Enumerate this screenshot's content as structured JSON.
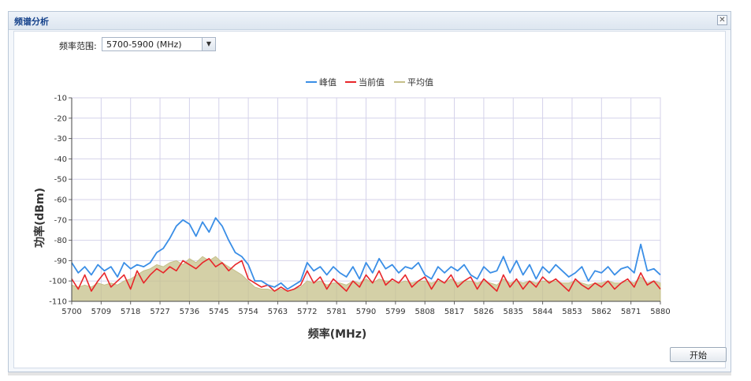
{
  "window": {
    "title": "频谱分析"
  },
  "controls": {
    "range_label": "频率范围:",
    "range_value": "5700-5900 (MHz)",
    "start_button": "开始"
  },
  "colors": {
    "peak": "#3a8ee6",
    "current": "#e8262a",
    "average": "#c6c08a"
  },
  "chart_data": {
    "type": "line",
    "title": "",
    "xlabel": "频率(MHz)",
    "ylabel": "功率(dBm)",
    "xlim": [
      5700,
      5880
    ],
    "ylim": [
      -110,
      -10
    ],
    "x_ticks": [
      5700,
      5709,
      5718,
      5727,
      5736,
      5745,
      5754,
      5763,
      5772,
      5781,
      5790,
      5799,
      5808,
      5817,
      5826,
      5835,
      5844,
      5853,
      5862,
      5871,
      5880
    ],
    "y_ticks": [
      -10,
      -20,
      -30,
      -40,
      -50,
      -60,
      -70,
      -80,
      -90,
      -100,
      -110
    ],
    "legend_position": "top",
    "grid": true,
    "x": [
      5700,
      5702,
      5704,
      5706,
      5708,
      5710,
      5712,
      5714,
      5716,
      5718,
      5720,
      5722,
      5724,
      5726,
      5728,
      5730,
      5732,
      5734,
      5736,
      5738,
      5740,
      5742,
      5744,
      5746,
      5748,
      5750,
      5752,
      5754,
      5756,
      5758,
      5760,
      5762,
      5764,
      5766,
      5768,
      5770,
      5772,
      5774,
      5776,
      5778,
      5780,
      5782,
      5784,
      5786,
      5788,
      5790,
      5792,
      5794,
      5796,
      5798,
      5800,
      5802,
      5804,
      5806,
      5808,
      5810,
      5812,
      5814,
      5816,
      5818,
      5820,
      5822,
      5824,
      5826,
      5828,
      5830,
      5832,
      5834,
      5836,
      5838,
      5840,
      5842,
      5844,
      5846,
      5848,
      5850,
      5852,
      5854,
      5856,
      5858,
      5860,
      5862,
      5864,
      5866,
      5868,
      5870,
      5872,
      5874,
      5876,
      5878,
      5880
    ],
    "series": [
      {
        "name": "峰值",
        "values": [
          -91,
          -96,
          -93,
          -97,
          -92,
          -95,
          -93,
          -98,
          -91,
          -94,
          -92,
          -93,
          -91,
          -86,
          -84,
          -79,
          -73,
          -70,
          -72,
          -78,
          -71,
          -76,
          -69,
          -73,
          -80,
          -86,
          -88,
          -92,
          -100,
          -100,
          -102,
          -103,
          -101,
          -104,
          -102,
          -100,
          -91,
          -95,
          -93,
          -97,
          -93,
          -96,
          -98,
          -93,
          -99,
          -91,
          -96,
          -89,
          -94,
          -92,
          -96,
          -93,
          -94,
          -91,
          -97,
          -99,
          -93,
          -96,
          -93,
          -95,
          -92,
          -97,
          -99,
          -93,
          -96,
          -95,
          -88,
          -96,
          -90,
          -97,
          -92,
          -99,
          -93,
          -96,
          -92,
          -95,
          -98,
          -96,
          -93,
          -100,
          -95,
          -96,
          -93,
          -97,
          -94,
          -93,
          -96,
          -82,
          -95,
          -94,
          -97
        ]
      },
      {
        "name": "当前值",
        "values": [
          -99,
          -104,
          -97,
          -105,
          -100,
          -96,
          -103,
          -100,
          -97,
          -104,
          -95,
          -101,
          -97,
          -94,
          -96,
          -93,
          -95,
          -90,
          -92,
          -94,
          -91,
          -89,
          -93,
          -91,
          -95,
          -92,
          -90,
          -99,
          -101,
          -103,
          -102,
          -105,
          -103,
          -105,
          -104,
          -102,
          -95,
          -101,
          -98,
          -104,
          -99,
          -102,
          -105,
          -100,
          -103,
          -97,
          -101,
          -95,
          -102,
          -99,
          -101,
          -97,
          -103,
          -100,
          -98,
          -104,
          -99,
          -101,
          -97,
          -103,
          -100,
          -98,
          -104,
          -99,
          -102,
          -105,
          -97,
          -103,
          -99,
          -104,
          -100,
          -103,
          -98,
          -101,
          -99,
          -102,
          -105,
          -99,
          -102,
          -104,
          -101,
          -103,
          -100,
          -104,
          -101,
          -99,
          -103,
          -96,
          -102,
          -100,
          -104
        ]
      },
      {
        "name": "平均值",
        "values": [
          -102,
          -103,
          -102,
          -103,
          -101,
          -102,
          -101,
          -102,
          -100,
          -99,
          -97,
          -95,
          -94,
          -92,
          -93,
          -91,
          -90,
          -92,
          -89,
          -91,
          -88,
          -90,
          -88,
          -91,
          -93,
          -95,
          -97,
          -100,
          -103,
          -104,
          -104,
          -105,
          -104,
          -105,
          -104,
          -103,
          -100,
          -101,
          -100,
          -102,
          -101,
          -101,
          -102,
          -100,
          -101,
          -99,
          -101,
          -99,
          -100,
          -100,
          -101,
          -100,
          -101,
          -100,
          -100,
          -101,
          -100,
          -101,
          -99,
          -101,
          -100,
          -100,
          -101,
          -100,
          -101,
          -102,
          -99,
          -101,
          -100,
          -101,
          -100,
          -101,
          -100,
          -100,
          -100,
          -101,
          -101,
          -100,
          -101,
          -102,
          -101,
          -101,
          -100,
          -101,
          -101,
          -100,
          -101,
          -98,
          -101,
          -100,
          -101
        ]
      }
    ]
  }
}
